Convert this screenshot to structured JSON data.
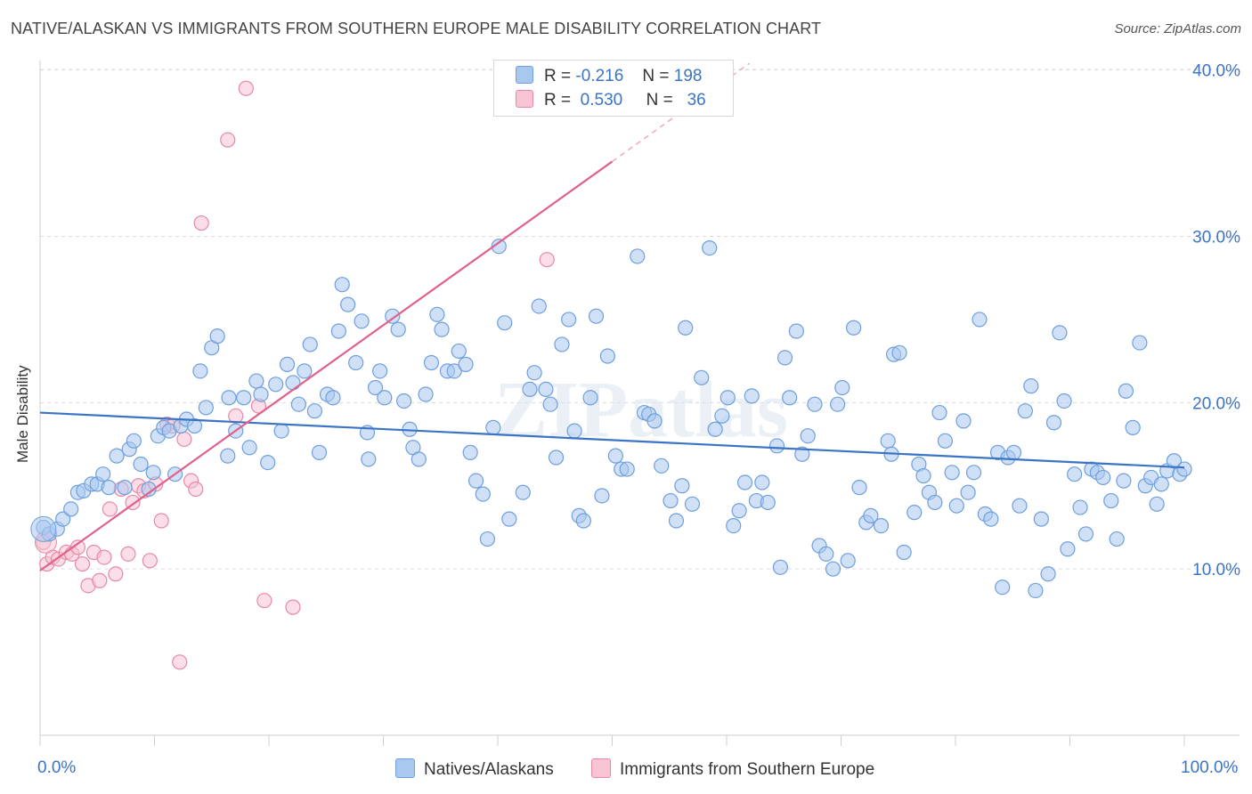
{
  "title": "NATIVE/ALASKAN VS IMMIGRANTS FROM SOUTHERN EUROPE MALE DISABILITY CORRELATION CHART",
  "source": "Source: ZipAtlas.com",
  "watermark": "ZIPatlas",
  "legend": {
    "rows": [
      {
        "r_label": "R =",
        "r_value": "-0.216",
        "n_label": "N =",
        "n_value": "198",
        "color": "#a9c8f0",
        "border": "#6f9fdc"
      },
      {
        "r_label": "R =",
        "r_value": "0.530",
        "n_label": "N =",
        "n_value": "36",
        "color": "#f8c3d3",
        "border": "#e68aa6"
      }
    ]
  },
  "bottom_legend": [
    {
      "label": "Natives/Alaskans",
      "color": "#a9c8f0",
      "border": "#6f9fdc"
    },
    {
      "label": "Immigrants from Southern Europe",
      "color": "#f8c3d3",
      "border": "#e68aa6"
    }
  ],
  "colors": {
    "blue": "#3b74c6",
    "blue_fill": "#a9c8f0",
    "pink": "#e0628a",
    "pink_fill": "#f8c3d3",
    "grid": "#dcdcdc"
  },
  "chart_data": {
    "type": "scatter",
    "xlabel": "",
    "ylabel": "Male Disability",
    "xlim": [
      0,
      100
    ],
    "ylim": [
      0,
      41
    ],
    "x_tick_labels": [
      "0.0%",
      "100.0%"
    ],
    "y_ticks": [
      10,
      20,
      30,
      40
    ],
    "y_tick_labels": [
      "10.0%",
      "20.0%",
      "30.0%",
      "40.0%"
    ],
    "grid": "horizontal dashed",
    "legend_position": "top-center",
    "series": [
      {
        "name": "Natives/Alaskans",
        "color": "#3b74c6",
        "points": [
          [
            0.3,
            12.5
          ],
          [
            0.8,
            12.1
          ],
          [
            1.5,
            12.4
          ],
          [
            2.0,
            13.0
          ],
          [
            2.7,
            13.6
          ],
          [
            3.3,
            14.6
          ],
          [
            3.8,
            14.7
          ],
          [
            4.5,
            15.1
          ],
          [
            5.0,
            15.1
          ],
          [
            5.5,
            15.7
          ],
          [
            6.0,
            14.9
          ],
          [
            6.7,
            16.8
          ],
          [
            7.4,
            14.9
          ],
          [
            7.8,
            17.2
          ],
          [
            8.2,
            17.7
          ],
          [
            8.8,
            16.3
          ],
          [
            9.5,
            14.8
          ],
          [
            9.9,
            15.8
          ],
          [
            10.3,
            18.0
          ],
          [
            10.8,
            18.5
          ],
          [
            11.3,
            18.3
          ],
          [
            11.8,
            15.7
          ],
          [
            12.3,
            18.6
          ],
          [
            12.8,
            19.0
          ],
          [
            13.5,
            18.6
          ],
          [
            14.0,
            21.9
          ],
          [
            14.5,
            19.7
          ],
          [
            15.0,
            23.3
          ],
          [
            15.5,
            24.0
          ],
          [
            16.4,
            16.8
          ],
          [
            16.5,
            20.3
          ],
          [
            17.1,
            18.3
          ],
          [
            17.8,
            20.3
          ],
          [
            18.3,
            17.3
          ],
          [
            18.9,
            21.3
          ],
          [
            19.3,
            20.5
          ],
          [
            19.9,
            16.4
          ],
          [
            20.6,
            21.1
          ],
          [
            21.1,
            18.3
          ],
          [
            21.6,
            22.3
          ],
          [
            22.1,
            21.2
          ],
          [
            22.6,
            19.9
          ],
          [
            23.1,
            21.9
          ],
          [
            23.6,
            23.5
          ],
          [
            24.0,
            19.5
          ],
          [
            24.4,
            17.0
          ],
          [
            25.1,
            20.5
          ],
          [
            25.6,
            20.3
          ],
          [
            26.1,
            24.3
          ],
          [
            26.4,
            27.1
          ],
          [
            26.9,
            25.9
          ],
          [
            27.6,
            22.4
          ],
          [
            28.1,
            24.9
          ],
          [
            28.7,
            16.6
          ],
          [
            28.6,
            18.2
          ],
          [
            29.3,
            20.9
          ],
          [
            29.7,
            21.9
          ],
          [
            30.1,
            20.3
          ],
          [
            30.8,
            25.2
          ],
          [
            31.3,
            24.4
          ],
          [
            31.8,
            20.1
          ],
          [
            32.3,
            18.4
          ],
          [
            32.6,
            17.3
          ],
          [
            33.1,
            16.6
          ],
          [
            33.7,
            20.5
          ],
          [
            34.2,
            22.4
          ],
          [
            34.7,
            25.3
          ],
          [
            35.1,
            24.4
          ],
          [
            35.6,
            21.9
          ],
          [
            36.2,
            21.9
          ],
          [
            36.6,
            23.1
          ],
          [
            37.2,
            22.3
          ],
          [
            37.6,
            17.0
          ],
          [
            38.1,
            15.3
          ],
          [
            38.7,
            14.5
          ],
          [
            39.1,
            11.8
          ],
          [
            39.6,
            18.5
          ],
          [
            40.1,
            29.4
          ],
          [
            40.6,
            24.8
          ],
          [
            41.0,
            13.0
          ],
          [
            42.2,
            14.6
          ],
          [
            42.8,
            20.8
          ],
          [
            43.2,
            21.8
          ],
          [
            43.6,
            25.8
          ],
          [
            44.2,
            20.8
          ],
          [
            44.6,
            19.9
          ],
          [
            45.1,
            16.7
          ],
          [
            45.6,
            23.5
          ],
          [
            46.2,
            25.0
          ],
          [
            46.7,
            18.3
          ],
          [
            47.1,
            13.2
          ],
          [
            47.5,
            12.9
          ],
          [
            48.1,
            20.3
          ],
          [
            48.6,
            25.2
          ],
          [
            49.1,
            14.4
          ],
          [
            49.6,
            22.8
          ],
          [
            50.3,
            16.8
          ],
          [
            50.8,
            16.0
          ],
          [
            51.3,
            16.0
          ],
          [
            52.2,
            28.8
          ],
          [
            52.8,
            19.4
          ],
          [
            53.2,
            19.3
          ],
          [
            53.7,
            18.9
          ],
          [
            54.3,
            16.2
          ],
          [
            55.1,
            14.1
          ],
          [
            55.6,
            12.9
          ],
          [
            56.1,
            15.0
          ],
          [
            56.4,
            24.5
          ],
          [
            57.0,
            13.9
          ],
          [
            57.8,
            21.5
          ],
          [
            58.5,
            29.3
          ],
          [
            59.0,
            18.4
          ],
          [
            59.6,
            19.2
          ],
          [
            60.1,
            20.3
          ],
          [
            60.6,
            12.6
          ],
          [
            61.1,
            13.5
          ],
          [
            61.6,
            15.2
          ],
          [
            62.2,
            20.4
          ],
          [
            62.6,
            14.1
          ],
          [
            63.1,
            15.2
          ],
          [
            63.6,
            14.0
          ],
          [
            64.4,
            17.4
          ],
          [
            64.7,
            10.1
          ],
          [
            65.1,
            22.7
          ],
          [
            65.5,
            20.3
          ],
          [
            66.1,
            24.3
          ],
          [
            66.6,
            16.9
          ],
          [
            67.1,
            18.0
          ],
          [
            67.7,
            19.9
          ],
          [
            68.1,
            11.4
          ],
          [
            68.7,
            10.9
          ],
          [
            69.3,
            10.0
          ],
          [
            69.7,
            19.9
          ],
          [
            70.1,
            20.9
          ],
          [
            70.6,
            10.5
          ],
          [
            71.1,
            24.5
          ],
          [
            71.6,
            14.9
          ],
          [
            72.2,
            12.8
          ],
          [
            72.6,
            13.2
          ],
          [
            73.5,
            12.6
          ],
          [
            74.1,
            17.7
          ],
          [
            74.4,
            16.9
          ],
          [
            74.6,
            22.9
          ],
          [
            75.1,
            23.0
          ],
          [
            75.5,
            11.0
          ],
          [
            76.4,
            13.4
          ],
          [
            76.8,
            16.3
          ],
          [
            77.2,
            15.6
          ],
          [
            77.7,
            14.6
          ],
          [
            78.2,
            14.0
          ],
          [
            78.6,
            19.4
          ],
          [
            79.1,
            17.7
          ],
          [
            79.7,
            15.8
          ],
          [
            80.1,
            13.8
          ],
          [
            80.7,
            18.9
          ],
          [
            81.1,
            14.6
          ],
          [
            81.6,
            15.8
          ],
          [
            82.1,
            25.0
          ],
          [
            82.6,
            13.3
          ],
          [
            83.1,
            13.0
          ],
          [
            83.7,
            17.0
          ],
          [
            84.1,
            8.9
          ],
          [
            84.6,
            16.7
          ],
          [
            85.1,
            17.0
          ],
          [
            85.6,
            13.8
          ],
          [
            86.1,
            19.5
          ],
          [
            86.6,
            21.0
          ],
          [
            87.0,
            8.7
          ],
          [
            87.5,
            13.0
          ],
          [
            88.1,
            9.7
          ],
          [
            88.6,
            18.8
          ],
          [
            89.1,
            24.2
          ],
          [
            89.5,
            20.1
          ],
          [
            89.8,
            11.2
          ],
          [
            90.4,
            15.7
          ],
          [
            90.9,
            13.7
          ],
          [
            91.4,
            12.1
          ],
          [
            91.9,
            16.0
          ],
          [
            92.4,
            15.8
          ],
          [
            92.9,
            15.5
          ],
          [
            93.6,
            14.1
          ],
          [
            94.1,
            11.8
          ],
          [
            94.7,
            15.3
          ],
          [
            94.9,
            20.7
          ],
          [
            95.5,
            18.5
          ],
          [
            96.1,
            23.6
          ],
          [
            96.6,
            15.0
          ],
          [
            97.1,
            15.5
          ],
          [
            97.6,
            13.9
          ],
          [
            98.0,
            15.1
          ],
          [
            98.5,
            15.9
          ],
          [
            99.1,
            16.5
          ],
          [
            99.6,
            15.7
          ],
          [
            100.0,
            16.0
          ]
        ]
      },
      {
        "name": "Immigrants from Southern Europe",
        "color": "#e0628a",
        "points": [
          [
            0.3,
            11.6
          ],
          [
            0.6,
            10.3
          ],
          [
            1.1,
            10.7
          ],
          [
            1.6,
            10.6
          ],
          [
            2.3,
            11.0
          ],
          [
            2.8,
            10.9
          ],
          [
            3.3,
            11.3
          ],
          [
            3.7,
            10.3
          ],
          [
            4.2,
            9.0
          ],
          [
            4.7,
            11.0
          ],
          [
            5.2,
            9.3
          ],
          [
            5.6,
            10.7
          ],
          [
            6.1,
            13.6
          ],
          [
            6.6,
            9.7
          ],
          [
            7.1,
            14.8
          ],
          [
            7.7,
            10.9
          ],
          [
            8.1,
            14.0
          ],
          [
            8.6,
            15.0
          ],
          [
            9.1,
            14.7
          ],
          [
            9.6,
            10.5
          ],
          [
            10.1,
            15.1
          ],
          [
            10.6,
            12.9
          ],
          [
            11.1,
            18.7
          ],
          [
            11.6,
            18.6
          ],
          [
            12.2,
            4.4
          ],
          [
            12.6,
            17.8
          ],
          [
            13.2,
            15.3
          ],
          [
            13.6,
            14.8
          ],
          [
            14.1,
            30.8
          ],
          [
            16.4,
            35.8
          ],
          [
            17.1,
            19.2
          ],
          [
            18.0,
            38.9
          ],
          [
            19.1,
            19.8
          ],
          [
            19.6,
            8.1
          ],
          [
            22.1,
            7.7
          ],
          [
            44.3,
            28.6
          ]
        ]
      }
    ],
    "trendlines": [
      {
        "series": "Natives/Alaskans",
        "x": [
          0,
          100
        ],
        "y": [
          19.4,
          16.1
        ]
      },
      {
        "series": "Immigrants from Southern Europe",
        "x": [
          0,
          50
        ],
        "y": [
          9.9,
          34.5
        ],
        "dashed_extension": [
          50,
          62
        ]
      }
    ]
  }
}
